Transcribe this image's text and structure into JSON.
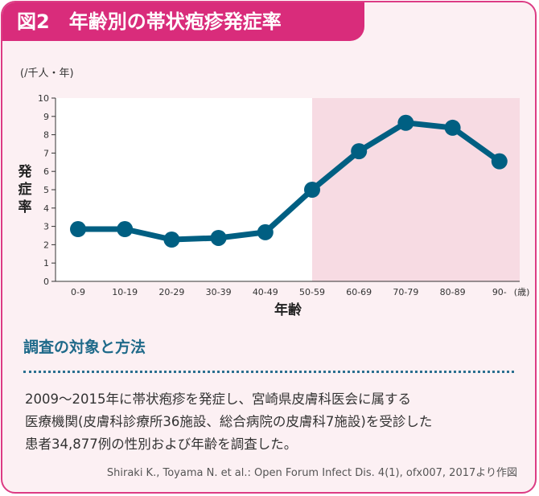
{
  "title": {
    "figure": "図2",
    "text": "年齢別の帯状疱疹発症率"
  },
  "chart_data": {
    "type": "line",
    "title": "",
    "unit_label": "(/千人・年)",
    "ylabel": "発症率",
    "xlabel": "年齢",
    "x_unit": "(歳)",
    "categories": [
      "0-9",
      "10-19",
      "20-29",
      "30-39",
      "40-49",
      "50-59",
      "60-69",
      "70-79",
      "80-89",
      "90-"
    ],
    "values": [
      2.85,
      2.85,
      2.28,
      2.37,
      2.68,
      5.0,
      7.1,
      8.65,
      8.38,
      6.55
    ],
    "ylim": [
      0,
      10
    ],
    "yticks": [
      "0",
      "1",
      "2",
      "3",
      "4",
      "5",
      "6",
      "7",
      "8",
      "9",
      "10"
    ],
    "highlight_from": "50-59",
    "grid": false,
    "colors": {
      "line": "#005f82",
      "highlight": "#f7dbe3",
      "plot_bg": "#ffffff"
    }
  },
  "section": {
    "title": "調査の対象と方法",
    "lines": [
      "2009〜2015年に帯状疱疹を発症し、宮崎県皮膚科医会に属する",
      "医療機関(皮膚科診療所36施設、総合病院の皮膚科7施設)を受診した",
      "患者34,877例の性別および年齢を調査した。"
    ],
    "citation": "Shiraki K., Toyama N. et al.: Open Forum Infect Dis. 4(1), ofx007, 2017より作図"
  },
  "colors": {
    "accent": "#d92c7b",
    "border": "#dc3c84",
    "background": "#fcf0f3",
    "heading": "#1f6a8a"
  }
}
